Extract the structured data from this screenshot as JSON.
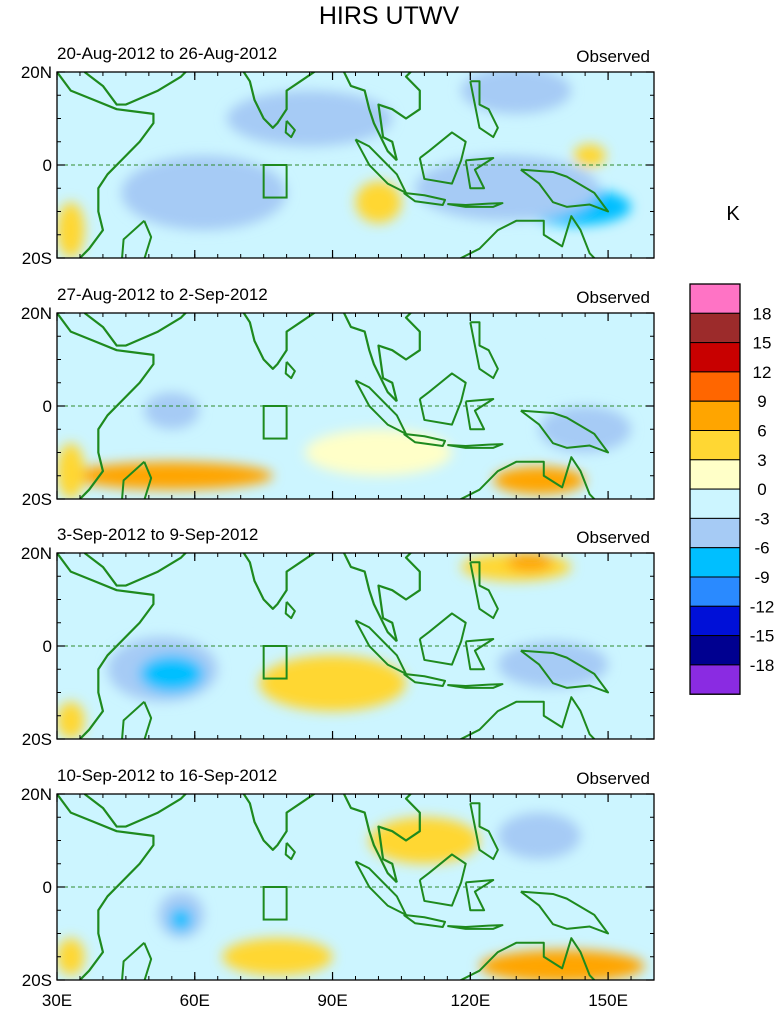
{
  "chart_data": {
    "type": "heatmap",
    "title": "HIRS UTWV",
    "panel_label": "Observed",
    "x_ticks": [
      {
        "label": "30E",
        "value": 30
      },
      {
        "label": "60E",
        "value": 60
      },
      {
        "label": "90E",
        "value": 90
      },
      {
        "label": "120E",
        "value": 120
      },
      {
        "label": "150E",
        "value": 150
      }
    ],
    "y_ticks": [
      {
        "label": "20N",
        "value": 20
      },
      {
        "label": "0",
        "value": 0
      },
      {
        "label": "20S",
        "value": -20
      }
    ],
    "xlim": [
      30,
      160
    ],
    "ylim": [
      -20,
      20
    ],
    "reference_box": {
      "lon": [
        75,
        80
      ],
      "lat": [
        -7,
        0
      ]
    },
    "colorbar": {
      "unit": "K",
      "levels": [
        18,
        15,
        12,
        9,
        6,
        3,
        0,
        -3,
        -6,
        -9,
        -12,
        -15,
        -18
      ],
      "colors": [
        "#ff73c5",
        "#9c2b2b",
        "#c80000",
        "#ff6600",
        "#ffa500",
        "#ffd733",
        "#ffffc8",
        "#ccf5ff",
        "#a6cbf5",
        "#00bfff",
        "#2a8aff",
        "#0010d8",
        "#000090",
        "#8a2be2"
      ]
    },
    "panels": [
      {
        "period": "20-Aug-2012 to 26-Aug-2012",
        "anomalies": [
          {
            "lon": 65,
            "lat": -10,
            "rx": 10,
            "ry": 3.5,
            "value": -9
          },
          {
            "lon": 143,
            "lat": -9,
            "rx": 12,
            "ry": 4,
            "value": -9
          },
          {
            "lon": 128,
            "lat": -5,
            "rx": 20,
            "ry": 7,
            "value": -6
          },
          {
            "lon": 62,
            "lat": -6,
            "rx": 18,
            "ry": 8,
            "value": -6
          },
          {
            "lon": 85,
            "lat": 10,
            "rx": 18,
            "ry": 6,
            "value": -6
          },
          {
            "lon": 130,
            "lat": 16,
            "rx": 12,
            "ry": 5,
            "value": -6
          },
          {
            "lon": 100,
            "lat": -8,
            "rx": 5,
            "ry": 4.5,
            "value": 3
          },
          {
            "lon": 33,
            "lat": -14,
            "rx": 3,
            "ry": 6,
            "value": 3
          },
          {
            "lon": 146,
            "lat": 2,
            "rx": 3.5,
            "ry": 2.5,
            "value": 3
          }
        ]
      },
      {
        "period": "27-Aug-2012 to 2-Sep-2012",
        "anomalies": [
          {
            "lon": 55,
            "lat": -1,
            "rx": 6,
            "ry": 4,
            "value": -6
          },
          {
            "lon": 118,
            "lat": 8,
            "rx": 18,
            "ry": 9,
            "value": -3
          },
          {
            "lon": 145,
            "lat": -5,
            "rx": 10,
            "ry": 5,
            "value": -6
          },
          {
            "lon": 65,
            "lat": 10,
            "rx": 20,
            "ry": 7,
            "value": -3
          },
          {
            "lon": 55,
            "lat": -15,
            "rx": 22,
            "ry": 3,
            "value": 6
          },
          {
            "lon": 135,
            "lat": -16,
            "rx": 10,
            "ry": 3,
            "value": 6
          },
          {
            "lon": 100,
            "lat": -10,
            "rx": 16,
            "ry": 5,
            "value": 0
          },
          {
            "lon": 33,
            "lat": -14,
            "rx": 3,
            "ry": 6,
            "value": 3
          }
        ]
      },
      {
        "period": "3-Sep-2012 to 9-Sep-2012",
        "anomalies": [
          {
            "lon": 53,
            "lat": -5,
            "rx": 12,
            "ry": 7,
            "value": -6
          },
          {
            "lon": 55,
            "lat": -6,
            "rx": 7,
            "ry": 4,
            "value": -9
          },
          {
            "lon": 138,
            "lat": -4,
            "rx": 12,
            "ry": 5,
            "value": -6
          },
          {
            "lon": 90,
            "lat": -8,
            "rx": 16,
            "ry": 6,
            "value": 3
          },
          {
            "lon": 130,
            "lat": 17,
            "rx": 12,
            "ry": 3,
            "value": 3
          },
          {
            "lon": 133,
            "lat": 18,
            "rx": 5,
            "ry": 2,
            "value": 6
          },
          {
            "lon": 75,
            "lat": 13,
            "rx": 20,
            "ry": 6,
            "value": -3
          },
          {
            "lon": 33,
            "lat": -16,
            "rx": 3,
            "ry": 4,
            "value": 3
          }
        ]
      },
      {
        "period": "10-Sep-2012 to 16-Sep-2012",
        "anomalies": [
          {
            "lon": 57,
            "lat": -6,
            "rx": 5,
            "ry": 5,
            "value": -6
          },
          {
            "lon": 57,
            "lat": -7,
            "rx": 2.5,
            "ry": 2.5,
            "value": -9
          },
          {
            "lon": 135,
            "lat": 11,
            "rx": 9,
            "ry": 5,
            "value": -6
          },
          {
            "lon": 140,
            "lat": -17,
            "rx": 18,
            "ry": 3.5,
            "value": 6
          },
          {
            "lon": 78,
            "lat": -15,
            "rx": 12,
            "ry": 4,
            "value": 3
          },
          {
            "lon": 62,
            "lat": 7,
            "rx": 18,
            "ry": 6,
            "value": -3
          },
          {
            "lon": 110,
            "lat": 10,
            "rx": 12,
            "ry": 5,
            "value": 3
          },
          {
            "lon": 33,
            "lat": -15,
            "rx": 3,
            "ry": 4,
            "value": 3
          }
        ]
      }
    ]
  }
}
